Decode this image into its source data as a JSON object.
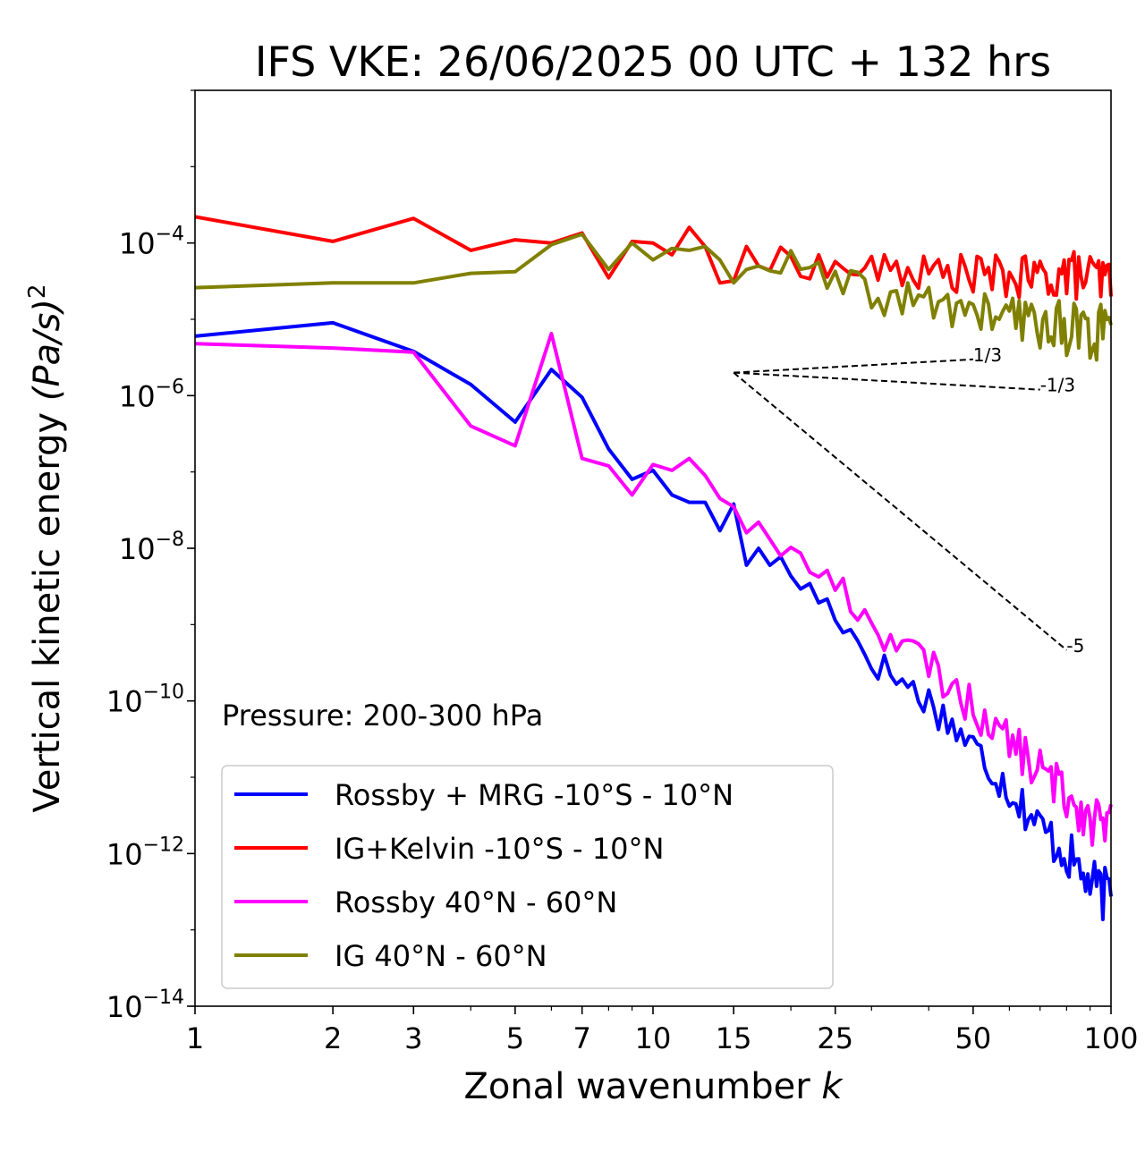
{
  "chart_data": {
    "type": "line",
    "title": "IFS VKE: 26/06/2025 00 UTC + 132 hrs",
    "xlabel": "Zonal wavenumber",
    "xlabel_symbol": "k",
    "ylabel": "Vertical kinetic energy",
    "ylabel_unit": "(Pa/s)",
    "ylabel_unit_exp": "2",
    "x_scale": "log",
    "y_scale": "log",
    "xlim": [
      1,
      100
    ],
    "ylim": [
      1e-14,
      0.01
    ],
    "xticks": [
      1,
      2,
      3,
      5,
      7,
      10,
      15,
      25,
      50,
      100
    ],
    "xtick_labels": [
      "1",
      "2",
      "3",
      "5",
      "7",
      "10",
      "15",
      "25",
      "50",
      "100"
    ],
    "yticks": [
      1e-14,
      1e-12,
      1e-10,
      1e-08,
      1e-06,
      0.0001
    ],
    "ytick_base": "10",
    "ytick_exponents": [
      "−14",
      "−12",
      "−10",
      "−8",
      "−6",
      "−4"
    ],
    "grid": false,
    "legend_position": "bottom-left",
    "annotation": "Pressure: 200-300 hPa",
    "slope_lines": [
      {
        "label": "1/3",
        "exponent": 0.3333,
        "x_start": 15,
        "x_end": 50,
        "y_start": 2e-06
      },
      {
        "label": "-1/3",
        "exponent": -0.3333,
        "x_start": 15,
        "x_end": 70,
        "y_start": 2e-06
      },
      {
        "label": "-5",
        "exponent": -5,
        "x_start": 15,
        "x_end": 80,
        "y_start": 2e-06
      }
    ],
    "series": [
      {
        "name": "Rossby + MRG -10°S - 10°N",
        "color": "#0000ff",
        "anchors": [
          [
            1,
            6e-06
          ],
          [
            2,
            9e-06
          ],
          [
            3,
            3.8e-06
          ],
          [
            4,
            1.4e-06
          ],
          [
            5,
            4.5e-07
          ],
          [
            6,
            2.2e-06
          ],
          [
            7,
            9.5e-07
          ],
          [
            8,
            2e-07
          ],
          [
            9,
            8e-08
          ],
          [
            10,
            1.05e-07
          ],
          [
            11,
            5e-08
          ],
          [
            12,
            4e-08
          ],
          [
            13,
            4e-08
          ],
          [
            14,
            1.7e-08
          ],
          [
            15,
            3.8e-08
          ],
          [
            16,
            6e-09
          ],
          [
            17,
            1e-08
          ],
          [
            20,
            4.5e-09
          ],
          [
            25,
            1.5e-09
          ],
          [
            30,
            3.5e-10
          ],
          [
            40,
            1e-10
          ],
          [
            50,
            2.5e-11
          ],
          [
            60,
            7e-12
          ],
          [
            70,
            2.2e-12
          ],
          [
            80,
            1e-12
          ],
          [
            90,
            4e-13
          ],
          [
            100,
            2.5e-13
          ]
        ],
        "noise": 0.12
      },
      {
        "name": "IG+Kelvin -10°S - 10°N",
        "color": "#ff0000",
        "anchors": [
          [
            1,
            0.00022
          ],
          [
            2,
            0.000105
          ],
          [
            3,
            0.00021
          ],
          [
            4,
            8e-05
          ],
          [
            5,
            0.00011
          ],
          [
            6,
            0.0001
          ],
          [
            7,
            0.000135
          ],
          [
            8,
            3.5e-05
          ],
          [
            9,
            0.000105
          ],
          [
            10,
            0.0001
          ],
          [
            11,
            7e-05
          ],
          [
            12,
            0.00016
          ],
          [
            13,
            9e-05
          ],
          [
            14,
            3e-05
          ],
          [
            15,
            3.2e-05
          ],
          [
            16,
            9e-05
          ],
          [
            17,
            5e-05
          ],
          [
            20,
            6e-05
          ],
          [
            25,
            4.5e-05
          ],
          [
            30,
            4.5e-05
          ],
          [
            40,
            4e-05
          ],
          [
            50,
            4e-05
          ],
          [
            60,
            3.5e-05
          ],
          [
            70,
            3.5e-05
          ],
          [
            80,
            4e-05
          ],
          [
            90,
            3.5e-05
          ],
          [
            100,
            3e-05
          ]
        ],
        "noise": 0.12
      },
      {
        "name": "Rossby 40°N - 60°N",
        "color": "#ff00ff",
        "anchors": [
          [
            1,
            4.8e-06
          ],
          [
            2,
            4.2e-06
          ],
          [
            3,
            3.7e-06
          ],
          [
            4,
            4e-07
          ],
          [
            5,
            2.2e-07
          ],
          [
            6,
            6.5e-06
          ],
          [
            7,
            1.5e-07
          ],
          [
            8,
            1.2e-07
          ],
          [
            9,
            5e-08
          ],
          [
            10,
            1.25e-07
          ],
          [
            11,
            1.05e-07
          ],
          [
            12,
            1.5e-07
          ],
          [
            13,
            9e-08
          ],
          [
            14,
            4.5e-08
          ],
          [
            15,
            3.5e-08
          ],
          [
            16,
            1.6e-08
          ],
          [
            17,
            2.2e-08
          ],
          [
            20,
            8e-09
          ],
          [
            25,
            3.5e-09
          ],
          [
            30,
            1e-09
          ],
          [
            40,
            3e-10
          ],
          [
            50,
            8e-11
          ],
          [
            60,
            3e-11
          ],
          [
            70,
            1.2e-11
          ],
          [
            80,
            6e-12
          ],
          [
            90,
            3e-12
          ],
          [
            100,
            2e-12
          ]
        ],
        "noise": 0.12
      },
      {
        "name": "IG 40°N - 60°N",
        "color": "#808000",
        "anchors": [
          [
            1,
            2.6e-05
          ],
          [
            2,
            3e-05
          ],
          [
            3,
            3e-05
          ],
          [
            4,
            4e-05
          ],
          [
            5,
            4.2e-05
          ],
          [
            6,
            9.5e-05
          ],
          [
            7,
            0.00013
          ],
          [
            8,
            4.5e-05
          ],
          [
            9,
            0.0001
          ],
          [
            10,
            6e-05
          ],
          [
            11,
            8.5e-05
          ],
          [
            12,
            8e-05
          ],
          [
            13,
            9e-05
          ],
          [
            14,
            6e-05
          ],
          [
            15,
            3e-05
          ],
          [
            16,
            4.5e-05
          ],
          [
            17,
            5e-05
          ],
          [
            20,
            5e-05
          ],
          [
            25,
            3e-05
          ],
          [
            30,
            2e-05
          ],
          [
            40,
            1.6e-05
          ],
          [
            50,
            1.3e-05
          ],
          [
            60,
            1e-05
          ],
          [
            70,
            9e-06
          ],
          [
            80,
            8e-06
          ],
          [
            90,
            7e-06
          ],
          [
            100,
            6e-06
          ]
        ],
        "noise": 0.14
      }
    ]
  }
}
